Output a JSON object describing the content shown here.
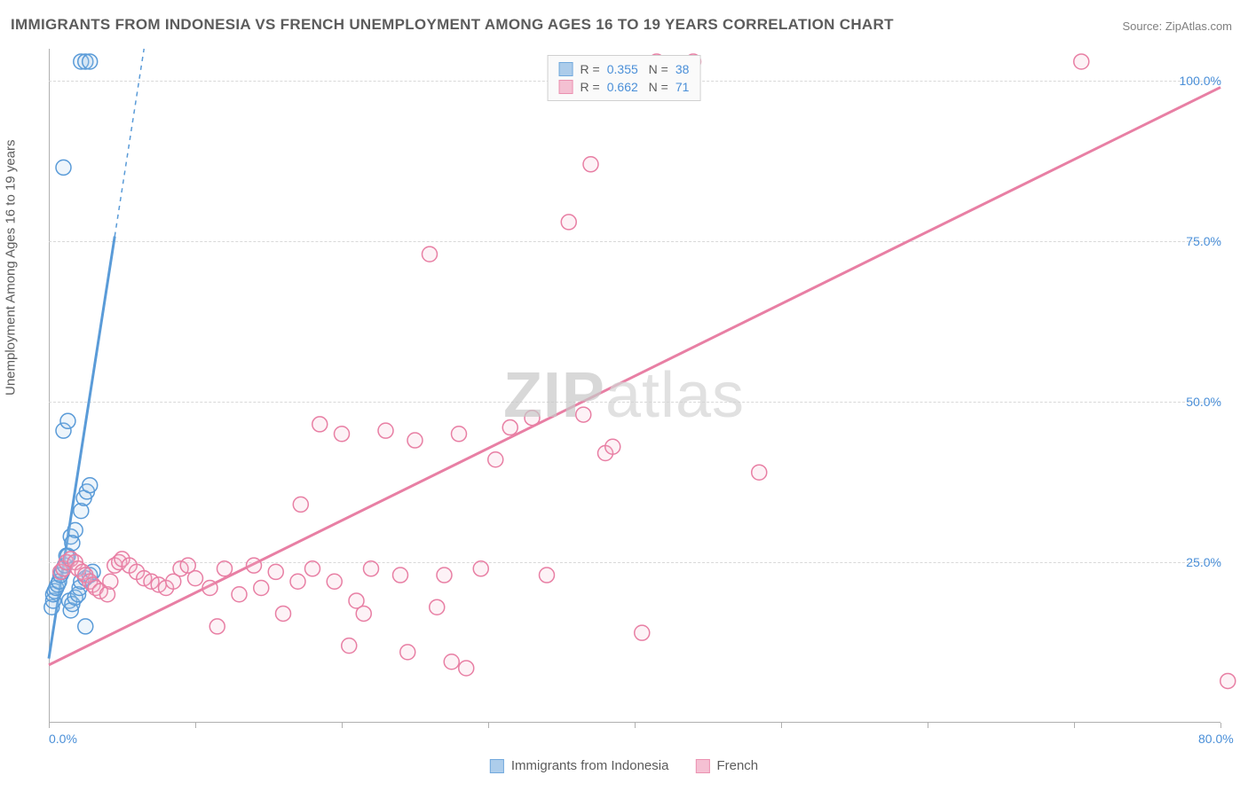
{
  "title": "IMMIGRANTS FROM INDONESIA VS FRENCH UNEMPLOYMENT AMONG AGES 16 TO 19 YEARS CORRELATION CHART",
  "source": "Source: ZipAtlas.com",
  "watermark_a": "ZIP",
  "watermark_b": "atlas",
  "y_axis_label": "Unemployment Among Ages 16 to 19 years",
  "chart": {
    "type": "scatter",
    "xlim": [
      0,
      80
    ],
    "ylim": [
      0,
      105
    ],
    "x_ticks": [
      0,
      10,
      20,
      30,
      40,
      50,
      60,
      70,
      80
    ],
    "x_tick_labels_shown": {
      "0": "0.0%",
      "80": "80.0%"
    },
    "y_ticks": [
      25,
      50,
      75,
      100
    ],
    "y_tick_labels": [
      "25.0%",
      "50.0%",
      "75.0%",
      "100.0%"
    ],
    "background_color": "#ffffff",
    "grid_color": "#d8d8d8",
    "axis_color": "#b0b0b0",
    "tick_label_color": "#4a8fd8",
    "marker_radius": 8.5,
    "marker_stroke_width": 1.5,
    "marker_fill_opacity": 0.18,
    "series": [
      {
        "name": "Immigrants from Indonesia",
        "color_stroke": "#5a9bd8",
        "color_fill": "#9fc5e8",
        "R": "0.355",
        "N": "38",
        "regression": {
          "x1": 0,
          "y1": 10,
          "x2": 6.5,
          "y2": 105,
          "solid_until_x": 4.5
        },
        "points": [
          [
            0.2,
            18
          ],
          [
            0.3,
            19
          ],
          [
            0.3,
            20
          ],
          [
            0.4,
            20.5
          ],
          [
            0.5,
            21
          ],
          [
            0.6,
            21.5
          ],
          [
            0.7,
            22
          ],
          [
            0.8,
            23
          ],
          [
            0.9,
            23.5
          ],
          [
            1.0,
            24
          ],
          [
            1.1,
            24.5
          ],
          [
            1.2,
            25
          ],
          [
            1.2,
            26
          ],
          [
            1.3,
            26
          ],
          [
            1.4,
            19
          ],
          [
            1.5,
            17.5
          ],
          [
            1.6,
            18.5
          ],
          [
            1.8,
            19.5
          ],
          [
            2.0,
            20
          ],
          [
            2.1,
            21
          ],
          [
            2.2,
            22
          ],
          [
            2.5,
            22.5
          ],
          [
            2.8,
            23
          ],
          [
            3.0,
            23.5
          ],
          [
            1.5,
            29
          ],
          [
            1.8,
            30
          ],
          [
            2.2,
            33
          ],
          [
            2.4,
            35
          ],
          [
            2.6,
            36
          ],
          [
            2.8,
            37
          ],
          [
            1.6,
            28
          ],
          [
            1.0,
            45.5
          ],
          [
            1.3,
            47
          ],
          [
            1.0,
            86.5
          ],
          [
            2.2,
            103
          ],
          [
            2.5,
            103
          ],
          [
            2.8,
            103
          ],
          [
            2.5,
            15
          ]
        ]
      },
      {
        "name": "French",
        "color_stroke": "#e87fa4",
        "color_fill": "#f4b6cc",
        "R": "0.662",
        "N": "71",
        "regression": {
          "x1": 0,
          "y1": 9,
          "x2": 80,
          "y2": 99,
          "solid_until_x": 80
        },
        "points": [
          [
            0.8,
            23.5
          ],
          [
            1.0,
            24
          ],
          [
            1.2,
            25
          ],
          [
            1.5,
            25.5
          ],
          [
            1.8,
            25
          ],
          [
            2.0,
            24
          ],
          [
            2.3,
            23.5
          ],
          [
            2.5,
            23
          ],
          [
            2.8,
            22
          ],
          [
            3.0,
            21.5
          ],
          [
            3.2,
            21
          ],
          [
            3.5,
            20.5
          ],
          [
            4.0,
            20
          ],
          [
            4.2,
            22
          ],
          [
            4.5,
            24.5
          ],
          [
            4.8,
            25
          ],
          [
            5.0,
            25.5
          ],
          [
            5.5,
            24.5
          ],
          [
            6.0,
            23.5
          ],
          [
            6.5,
            22.5
          ],
          [
            7.0,
            22
          ],
          [
            7.5,
            21.5
          ],
          [
            8.0,
            21
          ],
          [
            8.5,
            22
          ],
          [
            9.0,
            24
          ],
          [
            9.5,
            24.5
          ],
          [
            10.0,
            22.5
          ],
          [
            11.0,
            21
          ],
          [
            11.5,
            15
          ],
          [
            12.0,
            24
          ],
          [
            13.0,
            20
          ],
          [
            14.0,
            24.5
          ],
          [
            14.5,
            21
          ],
          [
            15.5,
            23.5
          ],
          [
            16.0,
            17
          ],
          [
            17.0,
            22
          ],
          [
            17.2,
            34
          ],
          [
            18.0,
            24
          ],
          [
            18.5,
            46.5
          ],
          [
            19.5,
            22
          ],
          [
            20.0,
            45
          ],
          [
            20.5,
            12
          ],
          [
            21.0,
            19
          ],
          [
            21.5,
            17
          ],
          [
            22.0,
            24
          ],
          [
            23.0,
            45.5
          ],
          [
            24.0,
            23
          ],
          [
            24.5,
            11
          ],
          [
            25.0,
            44
          ],
          [
            26.0,
            73
          ],
          [
            26.5,
            18
          ],
          [
            27.0,
            23
          ],
          [
            27.5,
            9.5
          ],
          [
            28.0,
            45
          ],
          [
            28.5,
            8.5
          ],
          [
            29.5,
            24
          ],
          [
            30.5,
            41
          ],
          [
            31.5,
            46
          ],
          [
            33.0,
            47.5
          ],
          [
            34.0,
            23
          ],
          [
            35.5,
            78
          ],
          [
            36.5,
            48
          ],
          [
            37.0,
            87
          ],
          [
            38.0,
            42
          ],
          [
            38.5,
            43
          ],
          [
            40.5,
            14
          ],
          [
            41.5,
            103
          ],
          [
            44.0,
            103
          ],
          [
            48.5,
            39
          ],
          [
            70.5,
            103
          ],
          [
            80.5,
            6.5
          ]
        ]
      }
    ]
  },
  "legend_bottom": {
    "series1_label": "Immigrants from Indonesia",
    "series2_label": "French"
  }
}
